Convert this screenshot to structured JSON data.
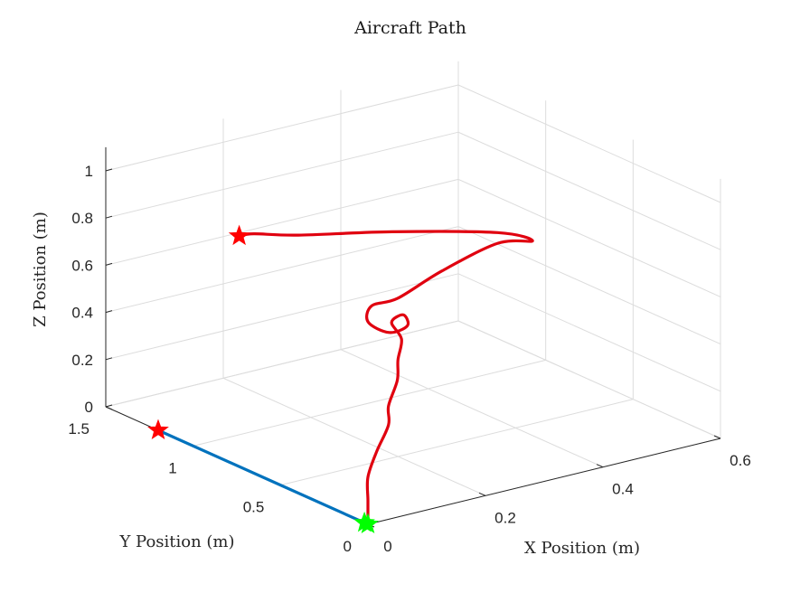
{
  "chart_data": {
    "type": "line3d",
    "title": "Aircraft Path",
    "xlabel": "X Position (m)",
    "ylabel": "Y Position (m)",
    "zlabel": "Z Position (m)",
    "xlim": [
      0,
      0.6
    ],
    "ylim": [
      0,
      1.5
    ],
    "zlim": [
      0,
      1.1
    ],
    "x_ticks": [
      "0",
      "0.2",
      "0.4",
      "0.6"
    ],
    "y_ticks": [
      "0",
      "0.5",
      "1",
      "1.5"
    ],
    "z_ticks": [
      "0",
      "0.2",
      "0.4",
      "0.6",
      "0.8",
      "1"
    ],
    "grid": true,
    "series": [
      {
        "color": "#e0000f",
        "points": [
          [
            0.0,
            0.0,
            0.0
          ],
          [
            0.0,
            0.0,
            0.1
          ],
          [
            0.0,
            0.0,
            0.2
          ],
          [
            0.015,
            0.0,
            0.3
          ],
          [
            0.035,
            0.0,
            0.4
          ],
          [
            0.035,
            0.0,
            0.48
          ],
          [
            0.05,
            0.0,
            0.58
          ],
          [
            0.06,
            0.03,
            0.65
          ],
          [
            0.075,
            0.06,
            0.72
          ],
          [
            0.07,
            0.1,
            0.78
          ],
          [
            0.09,
            0.1,
            0.8
          ],
          [
            0.085,
            0.06,
            0.77
          ],
          [
            0.06,
            0.08,
            0.75
          ],
          [
            0.045,
            0.15,
            0.78
          ],
          [
            0.06,
            0.18,
            0.83
          ],
          [
            0.095,
            0.15,
            0.85
          ],
          [
            0.17,
            0.15,
            0.92
          ],
          [
            0.265,
            0.15,
            0.98
          ],
          [
            0.31,
            0.1,
            0.98
          ],
          [
            0.28,
            0.2,
            1.0
          ],
          [
            0.16,
            0.4,
            1.01
          ],
          [
            0.06,
            0.6,
            0.99
          ],
          [
            0.02,
            0.72,
            0.98
          ],
          [
            0.01,
            0.77,
            0.96
          ]
        ]
      },
      {
        "color": "#0072bd",
        "points": [
          [
            0.0,
            0.0,
            0.0
          ],
          [
            0.0,
            1.2,
            0.0
          ]
        ]
      }
    ],
    "markers": [
      {
        "label": "",
        "shape": "star",
        "color": "#ff0000",
        "point": [
          0.01,
          0.77,
          0.96
        ]
      },
      {
        "label": "",
        "shape": "star",
        "color": "#ff0000",
        "point": [
          0.0,
          1.2,
          0.0
        ]
      },
      {
        "label": "",
        "shape": "star",
        "color": "#00ff00",
        "point": [
          0.0,
          0.0,
          0.0
        ]
      },
      {
        "label": "",
        "shape": "star",
        "color": "#00ff00",
        "point": [
          0.0,
          0.02,
          0.0
        ]
      }
    ]
  }
}
